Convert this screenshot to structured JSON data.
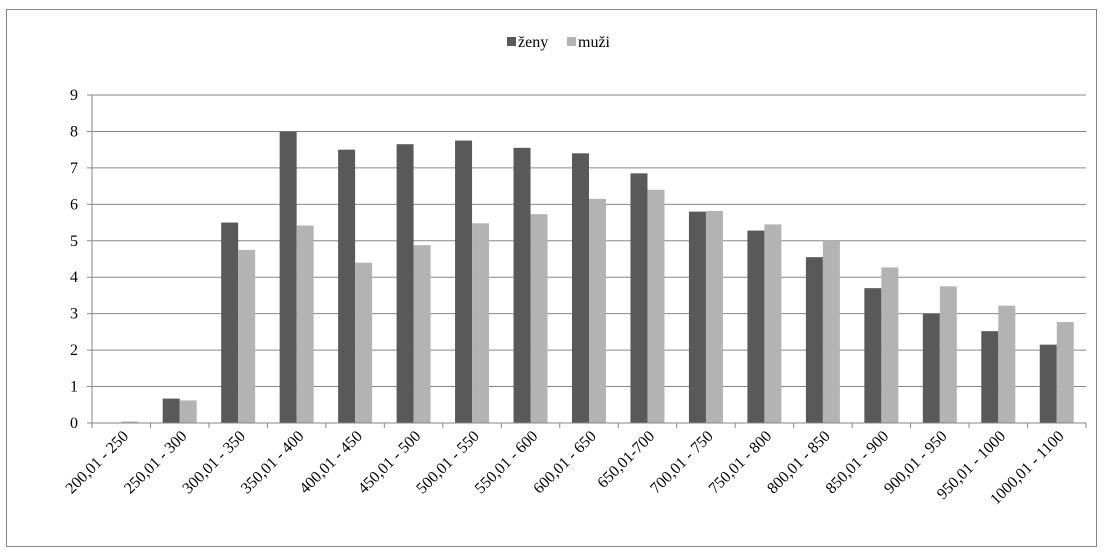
{
  "chart_data": {
    "type": "bar",
    "categories": [
      "200,01 - 250",
      "250,01 - 300",
      "300,01 - 350",
      "350,01 - 400",
      "400,01 - 450",
      "450,01 - 500",
      "500,01 - 550",
      "550,01 - 600",
      "600,01 - 650",
      "650,01-700",
      "700,01 - 750",
      "750,01 - 800",
      "800,01 - 850",
      "850,01 - 900",
      "900,01 - 950",
      "950,01 - 1000",
      "1000,01 - 1100"
    ],
    "series": [
      {
        "name": "ženy",
        "color": "#595959",
        "values": [
          0,
          0.67,
          5.5,
          8.0,
          7.5,
          7.65,
          7.75,
          7.55,
          7.4,
          6.85,
          5.8,
          5.28,
          4.55,
          3.7,
          3.0,
          2.52,
          2.15
        ]
      },
      {
        "name": "muži",
        "color": "#b3b3b3",
        "values": [
          0.04,
          0.62,
          4.75,
          5.42,
          4.4,
          4.88,
          5.48,
          5.73,
          6.15,
          6.4,
          5.82,
          5.45,
          5.0,
          4.27,
          3.75,
          3.22,
          2.77
        ]
      }
    ],
    "ylim": [
      0,
      9
    ],
    "yticks": [
      0,
      1,
      2,
      3,
      4,
      5,
      6,
      7,
      8,
      9
    ],
    "grid": true,
    "legend": "top-center",
    "title": "",
    "xlabel": "",
    "ylabel": ""
  }
}
